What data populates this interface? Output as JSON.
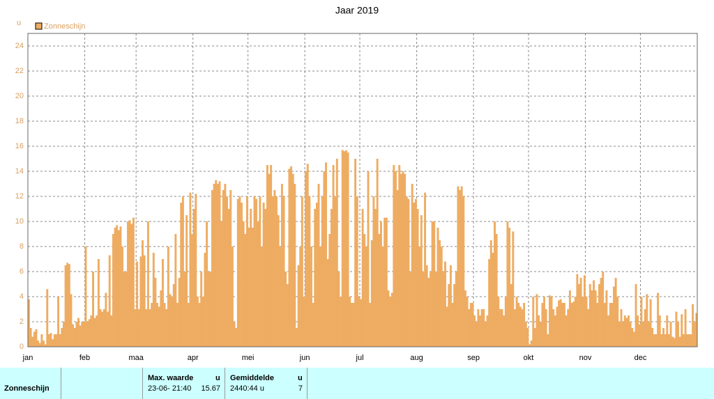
{
  "chart_data": {
    "type": "bar",
    "title": "Jaar 2019",
    "y_label": "u",
    "legend": "Zonneschijn",
    "color": "#eeac62",
    "xlim": [
      0,
      365
    ],
    "xticks": [
      {
        "value": 0,
        "label": "jan"
      },
      {
        "value": 31,
        "label": "feb"
      },
      {
        "value": 59,
        "label": "maa"
      },
      {
        "value": 90,
        "label": "apr"
      },
      {
        "value": 120,
        "label": "mei"
      },
      {
        "value": 151,
        "label": "jun"
      },
      {
        "value": 181,
        "label": "jul"
      },
      {
        "value": 212,
        "label": "aug"
      },
      {
        "value": 243,
        "label": "sep"
      },
      {
        "value": 273,
        "label": "okt"
      },
      {
        "value": 304,
        "label": "nov"
      },
      {
        "value": 334,
        "label": "dec"
      }
    ],
    "ylim": [
      0,
      24
    ],
    "yticks": [
      0,
      2,
      4,
      6,
      8,
      10,
      12,
      14,
      16,
      18,
      20,
      22,
      24
    ],
    "grid": true,
    "values": [
      3.8,
      1.5,
      0.8,
      1.2,
      1.4,
      0.5,
      0.3,
      1.0,
      0.5,
      0.2,
      4.6,
      1.0,
      1.1,
      0.6,
      1.0,
      1.0,
      4.0,
      1.0,
      1.5,
      2.0,
      6.5,
      6.7,
      6.6,
      4.2,
      1.8,
      1.5,
      2.0,
      2.3,
      1.7,
      2.0,
      2.0,
      8.0,
      2.0,
      2.2,
      2.5,
      6.0,
      2.3,
      2.5,
      7.0,
      3.0,
      2.8,
      3.0,
      4.3,
      2.8,
      7.3,
      2.5,
      9.0,
      9.5,
      9.7,
      9.3,
      9.6,
      8.0,
      6.0,
      6.0,
      10.0,
      10.1,
      9.8,
      10.3,
      3.0,
      6.8,
      3.0,
      7.2,
      8.5,
      7.3,
      3.0,
      10.0,
      3.0,
      3.5,
      7.5,
      5.5,
      3.5,
      3.2,
      4.5,
      7.0,
      3.5,
      3.0,
      8.0,
      4.2,
      4.0,
      5.0,
      9.0,
      3.5,
      5.5,
      11.5,
      12.0,
      6.0,
      10.5,
      3.5,
      12.3,
      9.0,
      11.0,
      12.2,
      4.0,
      3.5,
      6.0,
      4.0,
      7.5,
      10.0,
      6.0,
      6.0,
      12.5,
      13.0,
      13.3,
      13.0,
      13.2,
      10.0,
      12.5,
      13.0,
      12.0,
      11.0,
      12.5,
      8.0,
      2.0,
      1.5,
      11.8,
      12.0,
      11.5,
      10.0,
      9.0,
      12.0,
      9.5,
      11.0,
      9.5,
      12.0,
      11.8,
      10.0,
      12.0,
      8.0,
      11.5,
      11.0,
      14.5,
      13.8,
      14.5,
      12.0,
      12.5,
      12.0,
      10.5,
      8.0,
      13.0,
      12.0,
      6.0,
      5.0,
      14.2,
      14.4,
      13.8,
      13.0,
      1.5,
      6.5,
      8.0,
      12.0,
      4.0,
      14.0,
      14.6,
      12.0,
      8.0,
      3.5,
      11.0,
      11.5,
      13.0,
      8.0,
      12.0,
      14.0,
      14.7,
      7.0,
      9.0,
      11.0,
      14.5,
      12.0,
      15.0,
      6.0,
      4.0,
      15.7,
      15.6,
      15.67,
      15.5,
      4.0,
      3.5,
      3.5,
      15.0,
      12.0,
      4.0,
      3.8,
      11.0,
      9.0,
      8.0,
      14.0,
      3.5,
      8.5,
      12.0,
      11.0,
      15.0,
      9.0,
      10.0,
      8.0,
      10.3,
      10.3,
      4.5,
      4.0,
      4.3,
      14.5,
      14.0,
      12.5,
      14.5,
      13.8,
      14.0,
      13.8,
      12.0,
      11.8,
      6.0,
      13.0,
      11.5,
      11.8,
      11.0,
      8.0,
      10.5,
      6.0,
      12.3,
      6.5,
      5.5,
      6.0,
      10.0,
      10.0,
      6.0,
      9.5,
      8.5,
      8.0,
      6.0,
      6.8,
      3.2,
      5.0,
      6.5,
      3.5,
      5.0,
      6.0,
      12.8,
      12.5,
      12.8,
      12.0,
      4.5,
      4.0,
      3.0,
      3.5,
      3.5,
      2.5,
      2.0,
      3.0,
      2.5,
      3.0,
      3.0,
      2.0,
      2.5,
      7.0,
      8.5,
      7.5,
      10.0,
      9.0,
      4.0,
      3.0,
      3.0,
      2.5,
      4.0,
      10.0,
      9.5,
      5.0,
      9.2,
      3.0,
      4.0,
      3.5,
      3.2,
      3.0,
      3.5,
      2.0,
      1.5,
      0.2,
      0.5,
      4.0,
      1.5,
      4.2,
      2.5,
      2.0,
      3.5,
      4.0,
      3.0,
      1.0,
      4.1,
      4.0,
      3.0,
      2.5,
      3.2,
      3.7,
      3.8,
      3.5,
      3.5,
      2.5,
      3.0,
      4.5,
      3.5,
      3.6,
      4.0,
      5.8,
      5.0,
      5.5,
      4.0,
      5.7,
      4.0,
      3.0,
      5.0,
      4.5,
      5.3,
      4.5,
      3.5,
      5.0,
      5.5,
      6.0,
      3.5,
      4.5,
      2.5,
      3.5,
      3.5,
      4.8,
      5.5,
      4.0,
      2.0,
      3.0,
      2.0,
      2.5,
      2.3,
      2.5,
      2.0,
      1.5,
      1.2,
      5.0,
      2.5,
      1.8,
      4.0,
      2.0,
      3.0,
      4.2,
      2.0,
      3.8,
      1.5,
      1.0,
      1.0,
      4.3,
      2.5,
      1.0,
      1.5,
      1.0,
      2.5,
      1.0,
      2.0,
      0.8,
      0.7,
      2.8,
      2.0,
      0.8,
      2.6,
      1.0,
      3.0,
      1.0,
      1.0,
      1.0,
      3.4,
      2.0,
      2.7
    ]
  },
  "table": {
    "headers": [
      "Max. waarde",
      "u",
      "Gemiddelde",
      "u"
    ],
    "row": [
      "Zonneschijn",
      "23-06- 21:40",
      "15.67",
      "2440:44 u",
      "7"
    ]
  }
}
